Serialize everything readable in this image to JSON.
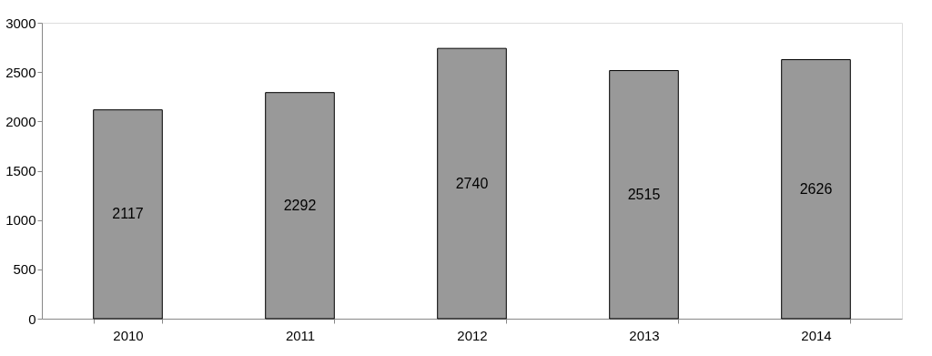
{
  "chart_data": {
    "type": "bar",
    "categories": [
      "2010",
      "2011",
      "2012",
      "2013",
      "2014"
    ],
    "values": [
      2117,
      2292,
      2740,
      2515,
      2626
    ],
    "color": "#999999",
    "ylim": [
      0,
      3000
    ],
    "yticks": [
      0,
      500,
      1000,
      1500,
      2000,
      2500,
      3000
    ],
    "grid": false,
    "data_labels": true
  }
}
